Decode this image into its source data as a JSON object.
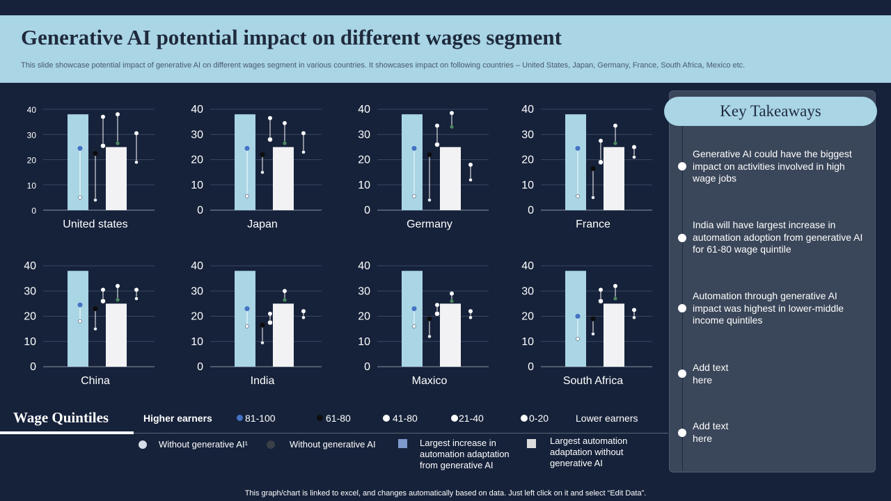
{
  "header": {
    "title": "Generative AI potential impact on different wages segment",
    "subtitle": "This slide showcase potential impact of generative AI  on different wages segment in various countries. It showcases impact on following countries – United States, Japan, Germany, France, South Africa, Mexico etc."
  },
  "colors": {
    "background": "#16223a",
    "header_band": "#a9d5e5",
    "bar_with_ai": "#a9d5e5",
    "bar_without_ai": "#f2f2f4",
    "q81_100": "#4472c4",
    "q61_80": "#0d0d0d",
    "q41_80": "#ffffff",
    "q21_40": "#ffffff",
    "q0_20": "#e8ecf2",
    "marker_green": "#4a8a60"
  },
  "chart_data": [
    {
      "type": "bar",
      "title": "United states",
      "ylim": [
        0,
        40
      ],
      "yticks": [
        "0",
        "10",
        "20",
        "30",
        "40"
      ],
      "series": [
        {
          "name": "Largest increase in automation adaptation from generative AI",
          "values": [
            38
          ]
        },
        {
          "name": "Largest automation adaptation without generative AI",
          "values": [
            25
          ]
        }
      ],
      "ranges": [
        {
          "from": 5,
          "to": 24.5,
          "quintile": "81-100"
        },
        {
          "from": 4,
          "to": 22.5,
          "quintile": "61-80"
        },
        {
          "from": 25.5,
          "to": 37,
          "quintile": "41-80"
        },
        {
          "from": 26.5,
          "to": 38,
          "quintile": "21-40"
        },
        {
          "from": 19,
          "to": 30.5,
          "quintile": "0-20"
        }
      ]
    },
    {
      "type": "bar",
      "title": "Japan",
      "ylim": [
        0,
        40
      ],
      "yticks": [
        "0",
        "10",
        "20",
        "30",
        "40"
      ],
      "series": [
        {
          "name": "Largest increase in automation adaptation from generative AI",
          "values": [
            38
          ]
        },
        {
          "name": "Largest automation adaptation without generative AI",
          "values": [
            25
          ]
        }
      ],
      "ranges": [
        {
          "from": 5.5,
          "to": 24.5,
          "quintile": "81-100"
        },
        {
          "from": 15,
          "to": 22,
          "quintile": "61-80"
        },
        {
          "from": 28,
          "to": 36.5,
          "quintile": "41-80"
        },
        {
          "from": 26.5,
          "to": 34.5,
          "quintile": "21-40"
        },
        {
          "from": 23,
          "to": 30.5,
          "quintile": "0-20"
        }
      ]
    },
    {
      "type": "bar",
      "title": "Germany",
      "ylim": [
        0,
        40
      ],
      "yticks": [
        "0",
        "10",
        "20",
        "30",
        "40"
      ],
      "series": [
        {
          "name": "Largest increase in automation adaptation from generative AI",
          "values": [
            38
          ]
        },
        {
          "name": "Largest automation adaptation without generative AI",
          "values": [
            25
          ]
        }
      ],
      "ranges": [
        {
          "from": 5.5,
          "to": 24.5,
          "quintile": "81-100"
        },
        {
          "from": 4,
          "to": 22,
          "quintile": "61-80"
        },
        {
          "from": 26,
          "to": 33.5,
          "quintile": "41-80"
        },
        {
          "from": 33,
          "to": 38.5,
          "quintile": "21-40"
        },
        {
          "from": 12,
          "to": 18,
          "quintile": "0-20"
        }
      ]
    },
    {
      "type": "bar",
      "title": "France",
      "ylim": [
        0,
        40
      ],
      "yticks": [
        "0",
        "10",
        "20",
        "30",
        "40"
      ],
      "series": [
        {
          "name": "Largest increase in automation adaptation from generative AI",
          "values": [
            38
          ]
        },
        {
          "name": "Largest automation adaptation without generative AI",
          "values": [
            25
          ]
        }
      ],
      "ranges": [
        {
          "from": 5.5,
          "to": 24.5,
          "quintile": "81-100"
        },
        {
          "from": 5,
          "to": 16.5,
          "quintile": "61-80"
        },
        {
          "from": 19,
          "to": 27.5,
          "quintile": "41-80"
        },
        {
          "from": 26.5,
          "to": 33.5,
          "quintile": "21-40"
        },
        {
          "from": 21,
          "to": 25,
          "quintile": "0-20"
        }
      ]
    },
    {
      "type": "bar",
      "title": "China",
      "ylim": [
        0,
        40
      ],
      "yticks": [
        "0",
        "10",
        "20",
        "30",
        "40"
      ],
      "series": [
        {
          "name": "Largest increase in automation adaptation from generative AI",
          "values": [
            38
          ]
        },
        {
          "name": "Largest automation adaptation without generative AI",
          "values": [
            25
          ]
        }
      ],
      "ranges": [
        {
          "from": 18,
          "to": 24.5,
          "quintile": "81-100"
        },
        {
          "from": 15,
          "to": 23,
          "quintile": "61-80"
        },
        {
          "from": 26,
          "to": 30.5,
          "quintile": "41-80"
        },
        {
          "from": 26.5,
          "to": 32,
          "quintile": "21-40"
        },
        {
          "from": 27,
          "to": 30.5,
          "quintile": "0-20"
        }
      ]
    },
    {
      "type": "bar",
      "title": "India",
      "ylim": [
        0,
        40
      ],
      "yticks": [
        "0",
        "10",
        "20",
        "30",
        "40"
      ],
      "series": [
        {
          "name": "Largest increase in automation adaptation from generative AI",
          "values": [
            38
          ]
        },
        {
          "name": "Largest automation adaptation without generative AI",
          "values": [
            25
          ]
        }
      ],
      "ranges": [
        {
          "from": 16,
          "to": 23,
          "quintile": "81-100"
        },
        {
          "from": 9.5,
          "to": 16.5,
          "quintile": "61-80"
        },
        {
          "from": 17.5,
          "to": 21,
          "quintile": "41-80"
        },
        {
          "from": 26.5,
          "to": 30,
          "quintile": "21-40"
        },
        {
          "from": 19.5,
          "to": 22,
          "quintile": "0-20"
        }
      ]
    },
    {
      "type": "bar",
      "title": "Maxico",
      "ylim": [
        0,
        40
      ],
      "yticks": [
        "0",
        "10",
        "20",
        "30",
        "40"
      ],
      "series": [
        {
          "name": "Largest increase in automation adaptation from generative AI",
          "values": [
            38
          ]
        },
        {
          "name": "Largest automation adaptation without generative AI",
          "values": [
            25
          ]
        }
      ],
      "ranges": [
        {
          "from": 16,
          "to": 23,
          "quintile": "81-100"
        },
        {
          "from": 12,
          "to": 19,
          "quintile": "61-80"
        },
        {
          "from": 21,
          "to": 24.5,
          "quintile": "41-80"
        },
        {
          "from": 26,
          "to": 29,
          "quintile": "21-40"
        },
        {
          "from": 19.5,
          "to": 22,
          "quintile": "0-20"
        }
      ]
    },
    {
      "type": "bar",
      "title": "South Africa",
      "ylim": [
        0,
        40
      ],
      "yticks": [
        "0",
        "10",
        "20",
        "30",
        "40"
      ],
      "series": [
        {
          "name": "Largest increase in automation adaptation from generative AI",
          "values": [
            38
          ]
        },
        {
          "name": "Largest automation adaptation without generative AI",
          "values": [
            25
          ]
        }
      ],
      "ranges": [
        {
          "from": 11,
          "to": 20,
          "quintile": "81-100"
        },
        {
          "from": 13,
          "to": 19,
          "quintile": "61-80"
        },
        {
          "from": 26,
          "to": 30.5,
          "quintile": "41-80"
        },
        {
          "from": 27,
          "to": 32,
          "quintile": "21-40"
        },
        {
          "from": 19.5,
          "to": 22.5,
          "quintile": "0-20"
        }
      ]
    }
  ],
  "takeaways": {
    "title": "Key Takeaways",
    "items": [
      "Generative AI could have the biggest impact on activities involved in high wage jobs",
      "India will have largest increase in automation adoption from generative AI for 61-80 wage quintile",
      "Automation through generative AI impact was highest in lower-middle income quintiles",
      "Add text here",
      "Add text here"
    ]
  },
  "legend": {
    "title": "Wage Quintiles",
    "higher": "Higher earners",
    "lower": "Lower earners",
    "quintiles": [
      "81-100",
      "61-80",
      "41-80",
      "21-40",
      "0-20"
    ],
    "markers": [
      "Without generative AI¹",
      "Without generative  AI",
      "Largest increase in automation adaptation from generative  AI",
      "Largest automation adaptation without generative  AI"
    ]
  },
  "footnote": "This graph/chart is linked to excel,  and changes automatically based on data. Just left click on it and select “Edit Data”."
}
